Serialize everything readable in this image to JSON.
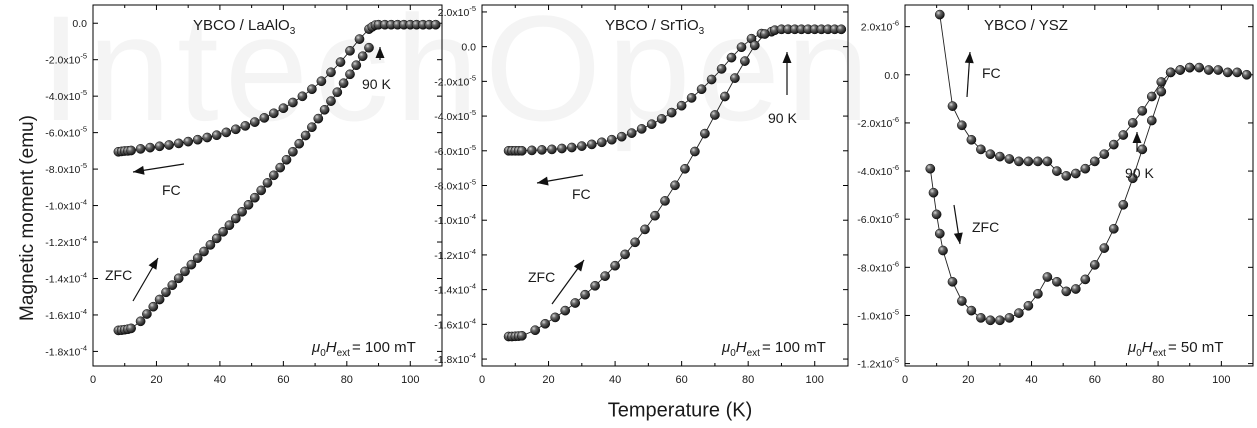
{
  "watermark": "IntechOpen",
  "figure": {
    "ylabel": "Magnetic moment (emu)",
    "xlabel": "Temperature (K)"
  },
  "colors": {
    "marker": "#1f1f1f",
    "line": "#222222",
    "axis": "#000000"
  },
  "chart_data": [
    {
      "type": "scatter",
      "title": "YBCO / LaAlO₃",
      "title_main": "YBCO / LaAlO",
      "title_sub": "3",
      "field_label": {
        "mu": "μ",
        "mu_sub": "0",
        "H": "H",
        "H_sub": "ext",
        "value": "= 100 mT"
      },
      "xlim": [
        0,
        110
      ],
      "ylim": [
        -0.000188,
        1e-05
      ],
      "xticks": [
        0,
        20,
        40,
        60,
        80,
        100
      ],
      "yticks": [
        {
          "label": "0.0",
          "v": 0
        },
        {
          "label": "-2.0x10⁻⁵",
          "base": "-2.0x10",
          "exp": "-5",
          "v": -2e-05
        },
        {
          "label": "-4.0x10⁻⁵",
          "base": "-4.0x10",
          "exp": "-5",
          "v": -4e-05
        },
        {
          "label": "-6.0x10⁻⁵",
          "base": "-6.0x10",
          "exp": "-5",
          "v": -6e-05
        },
        {
          "label": "-8.0x10⁻⁵",
          "base": "-8.0x10",
          "exp": "-5",
          "v": -8e-05
        },
        {
          "label": "-1.0x10⁻⁴",
          "base": "-1.0x10",
          "exp": "-4",
          "v": -0.0001
        },
        {
          "label": "-1.2x10⁻⁴",
          "base": "-1.2x10",
          "exp": "-4",
          "v": -0.00012
        },
        {
          "label": "-1.4x10⁻⁴",
          "base": "-1.4x10",
          "exp": "-4",
          "v": -0.00014
        },
        {
          "label": "-1.6x10⁻⁴",
          "base": "-1.6x10",
          "exp": "-4",
          "v": -0.00016
        },
        {
          "label": "-1.8x10⁻⁴",
          "base": "-1.8x10",
          "exp": "-4",
          "v": -0.00018
        }
      ],
      "grid": false,
      "series": [
        {
          "name": "FC",
          "x": [
            8,
            9,
            10,
            11,
            12,
            15,
            18,
            21,
            24,
            27,
            30,
            33,
            36,
            39,
            42,
            45,
            48,
            51,
            54,
            57,
            60,
            63,
            66,
            69,
            72,
            75,
            78,
            81,
            84,
            87,
            88,
            89,
            90,
            92,
            94,
            96,
            98,
            100,
            102,
            104,
            106,
            108
          ],
          "y": [
            -7.05e-05,
            -7.03e-05,
            -7.01e-05,
            -7e-05,
            -6.98e-05,
            -6.89e-05,
            -6.82e-05,
            -6.75e-05,
            -6.68e-05,
            -6.59e-05,
            -6.49e-05,
            -6.39e-05,
            -6.27e-05,
            -6.14e-05,
            -5.99e-05,
            -5.82e-05,
            -5.63e-05,
            -5.42e-05,
            -5.19e-05,
            -4.94e-05,
            -4.66e-05,
            -4.35e-05,
            -4.01e-05,
            -3.62e-05,
            -3.18e-05,
            -2.69e-05,
            -2.13e-05,
            -1.51e-05,
            -8.7e-06,
            -3.2e-06,
            -2e-06,
            -1e-06,
            -8e-07,
            -8e-07,
            -8e-07,
            -8e-07,
            -8e-07,
            -8e-07,
            -8e-07,
            -8e-07,
            -8e-07,
            -8e-07
          ]
        },
        {
          "name": "ZFC",
          "x": [
            8,
            9,
            10,
            11,
            12,
            15,
            17,
            19,
            21,
            23,
            25,
            27,
            29,
            31,
            33,
            35,
            37,
            39,
            41,
            43,
            45,
            47,
            49,
            51,
            53,
            55,
            57,
            59,
            61,
            63,
            65,
            67,
            69,
            71,
            73,
            75,
            77,
            79,
            81,
            83,
            85,
            87
          ],
          "y": [
            -0.0001685,
            -0.0001683,
            -0.0001681,
            -0.0001678,
            -0.0001674,
            -0.0001635,
            -0.0001595,
            -0.0001555,
            -0.0001515,
            -0.0001476,
            -0.0001437,
            -0.0001399,
            -0.0001361,
            -0.0001324,
            -0.0001288,
            -0.0001252,
            -0.0001216,
            -0.000118,
            -0.0001144,
            -0.0001108,
            -0.0001071,
            -0.0001034,
            -9.96e-05,
            -9.57e-05,
            -9.17e-05,
            -8.76e-05,
            -8.34e-05,
            -7.92e-05,
            -7.49e-05,
            -7.05e-05,
            -6.61e-05,
            -6.16e-05,
            -5.7e-05,
            -5.23e-05,
            -4.75e-05,
            -4.27e-05,
            -3.78e-05,
            -3.29e-05,
            -2.8e-05,
            -2.3e-05,
            -1.81e-05,
            -1.34e-05
          ]
        }
      ],
      "annotations": [
        {
          "text": "90 K",
          "x": 89,
          "y": -8e-07,
          "kind": "tc"
        },
        {
          "text": "FC",
          "kind": "fc"
        },
        {
          "text": "ZFC",
          "kind": "zfc"
        }
      ]
    },
    {
      "type": "scatter",
      "title": "YBCO / SrTiO₃",
      "title_main": "YBCO / SrTiO",
      "title_sub": "3",
      "field_label": {
        "mu": "μ",
        "mu_sub": "0",
        "H": "H",
        "H_sub": "ext",
        "value": "= 100 mT"
      },
      "xlim": [
        0,
        110
      ],
      "ylim": [
        -0.000184,
        2.4e-05
      ],
      "xticks": [
        0,
        20,
        40,
        60,
        80,
        100
      ],
      "yticks": [
        {
          "label": "2.0x10⁻⁵",
          "base": "2.0x10",
          "exp": "-5",
          "v": 2e-05
        },
        {
          "label": "0.0",
          "v": 0
        },
        {
          "label": "-2.0x10⁻⁵",
          "base": "-2.0x10",
          "exp": "-5",
          "v": -2e-05
        },
        {
          "label": "-4.0x10⁻⁵",
          "base": "-4.0x10",
          "exp": "-5",
          "v": -4e-05
        },
        {
          "label": "-6.0x10⁻⁵",
          "base": "-6.0x10",
          "exp": "-5",
          "v": -6e-05
        },
        {
          "label": "-8.0x10⁻⁵",
          "base": "-8.0x10",
          "exp": "-5",
          "v": -8e-05
        },
        {
          "label": "-1.0x10⁻⁴",
          "base": "-1.0x10",
          "exp": "-4",
          "v": -0.0001
        },
        {
          "label": "-1.2x10⁻⁴",
          "base": "-1.2x10",
          "exp": "-4",
          "v": -0.00012
        },
        {
          "label": "-1.4x10⁻⁴",
          "base": "-1.4x10",
          "exp": "-4",
          "v": -0.00014
        },
        {
          "label": "-1.6x10⁻⁴",
          "base": "-1.6x10",
          "exp": "-4",
          "v": -0.00016
        },
        {
          "label": "-1.8x10⁻⁴",
          "base": "-1.8x10",
          "exp": "-4",
          "v": -0.00018
        }
      ],
      "grid": false,
      "series": [
        {
          "name": "FC",
          "x": [
            8,
            9,
            10,
            11,
            12,
            15,
            18,
            21,
            24,
            27,
            30,
            33,
            36,
            39,
            42,
            45,
            48,
            51,
            54,
            57,
            60,
            63,
            66,
            69,
            72,
            75,
            78,
            81,
            84,
            87,
            88,
            90,
            92,
            94,
            96,
            98,
            100,
            102,
            104,
            106,
            108
          ],
          "y": [
            -6e-05,
            -6e-05,
            -6e-05,
            -6e-05,
            -6e-05,
            -5.98e-05,
            -5.95e-05,
            -5.92e-05,
            -5.87e-05,
            -5.81e-05,
            -5.73e-05,
            -5.63e-05,
            -5.51e-05,
            -5.36e-05,
            -5.19e-05,
            -4.98e-05,
            -4.74e-05,
            -4.47e-05,
            -4.16e-05,
            -3.8e-05,
            -3.4e-05,
            -2.95e-05,
            -2.45e-05,
            -1.89e-05,
            -1.28e-05,
            -6.3e-06,
            -3e-07,
            4.6e-06,
            7.5e-06,
            8.6e-06,
            9.5e-06,
            1e-05,
            1e-05,
            1e-05,
            1e-05,
            1e-05,
            1e-05,
            1e-05,
            1e-05,
            1e-05,
            1e-05
          ]
        },
        {
          "name": "ZFC",
          "x": [
            8,
            9,
            10,
            11,
            12,
            16,
            19,
            22,
            25,
            28,
            31,
            34,
            37,
            40,
            43,
            46,
            49,
            52,
            55,
            58,
            61,
            64,
            67,
            70,
            73,
            76,
            79,
            82,
            85
          ],
          "y": [
            -0.000167,
            -0.000167,
            -0.0001669,
            -0.0001668,
            -0.0001666,
            -0.0001634,
            -0.0001597,
            -0.000156,
            -0.0001521,
            -0.0001477,
            -0.0001429,
            -0.0001378,
            -0.0001322,
            -0.0001262,
            -0.0001197,
            -0.0001127,
            -0.0001053,
            -9.74e-05,
            -8.89e-05,
            -7.99e-05,
            -7.04e-05,
            -6.04e-05,
            -5.01e-05,
            -3.94e-05,
            -2.87e-05,
            -1.81e-05,
            -8.3e-06,
            7e-07,
            7.3e-06
          ]
        }
      ],
      "annotations": [
        {
          "text": "90 K",
          "x": 89,
          "y": 8.6e-06,
          "kind": "tc"
        },
        {
          "text": "FC",
          "kind": "fc"
        },
        {
          "text": "ZFC",
          "kind": "zfc"
        }
      ]
    },
    {
      "type": "scatter",
      "title": "YBCO / YSZ",
      "title_main": "YBCO / YSZ",
      "title_sub": "",
      "field_label": {
        "mu": "μ",
        "mu_sub": "0",
        "H": "H",
        "H_sub": "ext",
        "value": "= 50 mT"
      },
      "xlim": [
        0,
        110
      ],
      "ylim": [
        -1.21e-05,
        2.9e-06
      ],
      "xticks": [
        0,
        20,
        40,
        60,
        80,
        100
      ],
      "yticks": [
        {
          "label": "2.0x10⁻⁶",
          "base": "2.0x10",
          "exp": "-6",
          "v": 2e-06
        },
        {
          "label": "0.0",
          "v": 0
        },
        {
          "label": "-2.0x10⁻⁶",
          "base": "-2.0x10",
          "exp": "-6",
          "v": -2e-06
        },
        {
          "label": "-4.0x10⁻⁶",
          "base": "-4.0x10",
          "exp": "-6",
          "v": -4e-06
        },
        {
          "label": "-6.0x10⁻⁶",
          "base": "-6.0x10",
          "exp": "-6",
          "v": -6e-06
        },
        {
          "label": "-8.0x10⁻⁶",
          "base": "-8.0x10",
          "exp": "-6",
          "v": -8e-06
        },
        {
          "label": "-1.0x10⁻⁵",
          "base": "-1.0x10",
          "exp": "-5",
          "v": -1e-05
        },
        {
          "label": "-1.2x10⁻⁵",
          "base": "-1.2x10",
          "exp": "-5",
          "v": -1.2e-05
        }
      ],
      "grid": false,
      "series": [
        {
          "name": "FC",
          "x": [
            11,
            15,
            18,
            21,
            24,
            27,
            30,
            33,
            36,
            39,
            42,
            45,
            48,
            51,
            54,
            57,
            60,
            63,
            66,
            69,
            72,
            75,
            78,
            81,
            84,
            87,
            90,
            93,
            96,
            99,
            102,
            105,
            108
          ],
          "y": [
            2.5e-06,
            -1.3e-06,
            -2.1e-06,
            -2.7e-06,
            -3.1e-06,
            -3.3e-06,
            -3.4e-06,
            -3.5e-06,
            -3.6e-06,
            -3.6e-06,
            -3.6e-06,
            -3.6e-06,
            -4e-06,
            -4.2e-06,
            -4.1e-06,
            -3.9e-06,
            -3.6e-06,
            -3.3e-06,
            -2.9e-06,
            -2.5e-06,
            -2e-06,
            -1.5e-06,
            -9e-07,
            -3e-07,
            1e-07,
            2e-07,
            3e-07,
            3e-07,
            2e-07,
            2e-07,
            1e-07,
            1e-07,
            0
          ]
        },
        {
          "name": "ZFC",
          "x": [
            8,
            9,
            10,
            11,
            12,
            15,
            18,
            21,
            24,
            27,
            30,
            33,
            36,
            39,
            42,
            45,
            48,
            51,
            54,
            57,
            60,
            63,
            66,
            69,
            72,
            75,
            78,
            81,
            84,
            87,
            90
          ],
          "y": [
            -3.9e-06,
            -4.9e-06,
            -5.8e-06,
            -6.6e-06,
            -7.3e-06,
            -8.6e-06,
            -9.4e-06,
            -9.8e-06,
            -1.01e-05,
            -1.02e-05,
            -1.02e-05,
            -1.01e-05,
            -9.9e-06,
            -9.6e-06,
            -9.1e-06,
            -8.4e-06,
            -8.6e-06,
            -9e-06,
            -8.9e-06,
            -8.5e-06,
            -7.9e-06,
            -7.2e-06,
            -6.4e-06,
            -5.4e-06,
            -4.3e-06,
            -3.1e-06,
            -1.9e-06,
            -7e-07,
            1e-07,
            2e-07,
            3e-07
          ]
        }
      ],
      "annotations": [
        {
          "text": "90 K",
          "x": 92,
          "y": 3e-07,
          "kind": "tc"
        },
        {
          "text": "FC",
          "kind": "fc"
        },
        {
          "text": "ZFC",
          "kind": "zfc"
        }
      ]
    }
  ]
}
